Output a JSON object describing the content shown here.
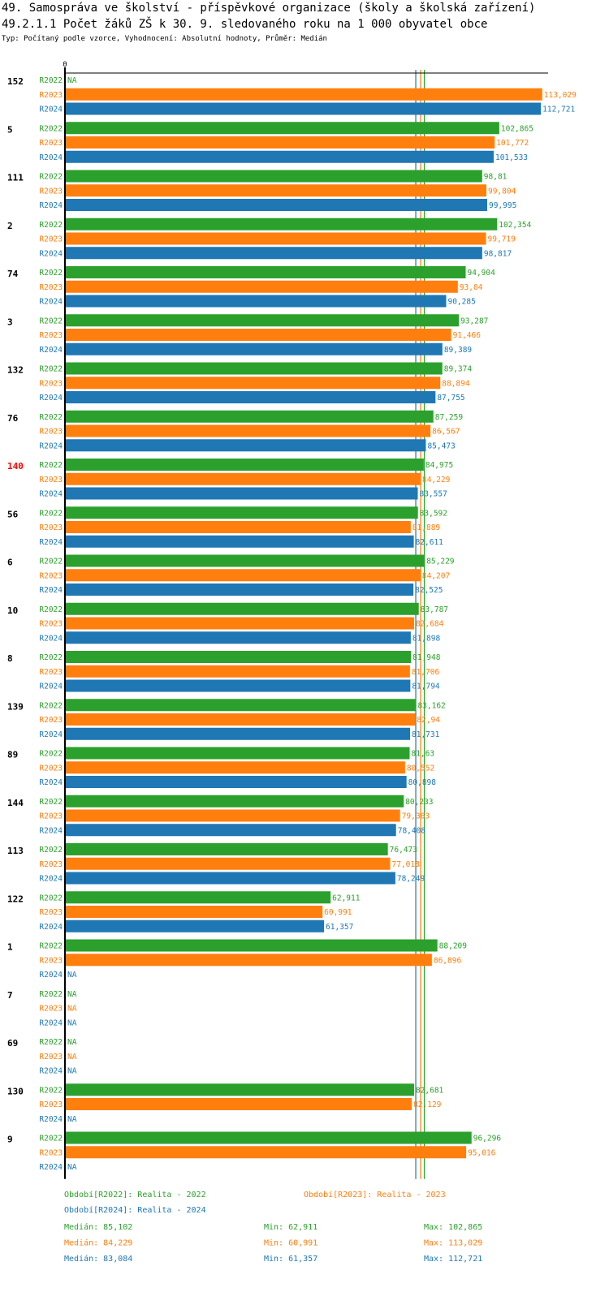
{
  "title": "49. Samospráva ve školství - příspěvkové organizace (školy a školská zařízení)",
  "subtitle": "49.2.1.1 Počet žáků ZŠ k 30. 9. sledovaného roku  na 1 000 obyvatel obce",
  "info": "Typ: Počítaný podle vzorce, Vyhodnocení: Absolutní hodnoty, Průměr: Medián",
  "colors": {
    "R2022": "#2ca02c",
    "R2023": "#ff7f0e",
    "R2024": "#1f77b4",
    "highlight": "#ff0000",
    "axis": "#000000"
  },
  "chart_data": {
    "type": "bar",
    "orientation": "horizontal",
    "x_tick_label": "0",
    "xlim": [
      0,
      113.029
    ],
    "series_names": [
      "R2022",
      "R2023",
      "R2024"
    ],
    "na_label": "NA",
    "highlight_group": "140",
    "groups": [
      {
        "label": "152",
        "values": [
          null,
          113.029,
          112.721
        ],
        "labels": [
          "NA",
          "113,029",
          "112,721"
        ]
      },
      {
        "label": "5",
        "values": [
          102.865,
          101.772,
          101.533
        ],
        "labels": [
          "102,865",
          "101,772",
          "101,533"
        ]
      },
      {
        "label": "111",
        "values": [
          98.81,
          99.804,
          99.995
        ],
        "labels": [
          "98,81",
          "99,804",
          "99,995"
        ]
      },
      {
        "label": "2",
        "values": [
          102.354,
          99.719,
          98.817
        ],
        "labels": [
          "102,354",
          "99,719",
          "98,817"
        ]
      },
      {
        "label": "74",
        "values": [
          94.904,
          93.04,
          90.285
        ],
        "labels": [
          "94,904",
          "93,04",
          "90,285"
        ]
      },
      {
        "label": "3",
        "values": [
          93.287,
          91.466,
          89.389
        ],
        "labels": [
          "93,287",
          "91,466",
          "89,389"
        ]
      },
      {
        "label": "132",
        "values": [
          89.374,
          88.894,
          87.755
        ],
        "labels": [
          "89,374",
          "88,894",
          "87,755"
        ]
      },
      {
        "label": "76",
        "values": [
          87.259,
          86.567,
          85.473
        ],
        "labels": [
          "87,259",
          "86,567",
          "85,473"
        ]
      },
      {
        "label": "140",
        "values": [
          84.975,
          84.229,
          83.557
        ],
        "labels": [
          "84,975",
          "84,229",
          "83,557"
        ]
      },
      {
        "label": "56",
        "values": [
          83.592,
          81.889,
          82.611
        ],
        "labels": [
          "83,592",
          "81,889",
          "82,611"
        ]
      },
      {
        "label": "6",
        "values": [
          85.229,
          84.207,
          82.525
        ],
        "labels": [
          "85,229",
          "84,207",
          "82,525"
        ]
      },
      {
        "label": "10",
        "values": [
          83.787,
          82.684,
          81.898
        ],
        "labels": [
          "83,787",
          "82,684",
          "81,898"
        ]
      },
      {
        "label": "8",
        "values": [
          81.948,
          81.706,
          81.794
        ],
        "labels": [
          "81,948",
          "81,706",
          "81,794"
        ]
      },
      {
        "label": "139",
        "values": [
          83.162,
          82.94,
          81.731
        ],
        "labels": [
          "83,162",
          "82,94",
          "81,731"
        ]
      },
      {
        "label": "89",
        "values": [
          81.63,
          80.552,
          80.898
        ],
        "labels": [
          "81,63",
          "80,552",
          "80,898"
        ]
      },
      {
        "label": "144",
        "values": [
          80.233,
          79.363,
          78.408
        ],
        "labels": [
          "80,233",
          "79,363",
          "78,408"
        ]
      },
      {
        "label": "113",
        "values": [
          76.473,
          77.018,
          78.249
        ],
        "labels": [
          "76,473",
          "77,018",
          "78,249"
        ]
      },
      {
        "label": "122",
        "values": [
          62.911,
          60.991,
          61.357
        ],
        "labels": [
          "62,911",
          "60,991",
          "61,357"
        ]
      },
      {
        "label": "1",
        "values": [
          88.209,
          86.896,
          null
        ],
        "labels": [
          "88,209",
          "86,896",
          "NA"
        ]
      },
      {
        "label": "7",
        "values": [
          null,
          null,
          null
        ],
        "labels": [
          "NA",
          "NA",
          "NA"
        ]
      },
      {
        "label": "69",
        "values": [
          null,
          null,
          null
        ],
        "labels": [
          "NA",
          "NA",
          "NA"
        ]
      },
      {
        "label": "130",
        "values": [
          82.681,
          82.129,
          null
        ],
        "labels": [
          "82,681",
          "82,129",
          "NA"
        ]
      },
      {
        "label": "9",
        "values": [
          96.296,
          95.016,
          null
        ],
        "labels": [
          "96,296",
          "95,016",
          "NA"
        ]
      }
    ],
    "medians": [
      85.102,
      84.229,
      83.084
    ]
  },
  "legend": {
    "period_r2022": "Období[R2022]: Realita - 2022",
    "period_r2023": "Období[R2023]: Realita - 2023",
    "period_r2024": "Období[R2024]: Realita - 2024"
  },
  "stats": [
    {
      "median": "Medián: 85,102",
      "min": "Min: 62,911",
      "max": "Max: 102,865"
    },
    {
      "median": "Medián: 84,229",
      "min": "Min: 60,991",
      "max": "Max: 113,029"
    },
    {
      "median": "Medián: 83,084",
      "min": "Min: 61,357",
      "max": "Max: 112,721"
    }
  ]
}
